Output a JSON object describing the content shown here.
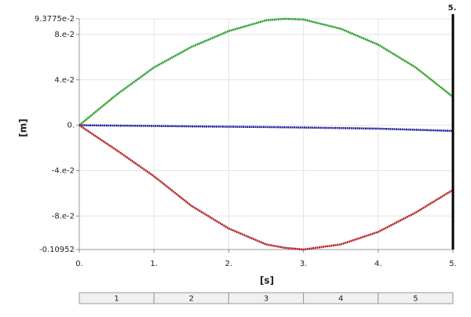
{
  "chart_data": {
    "type": "line",
    "y_label": "[m]",
    "x_label": "[s]",
    "x": [
      0,
      0.5,
      1,
      1.5,
      2,
      2.5,
      2.75,
      3,
      3.5,
      4,
      4.5,
      5
    ],
    "series": [
      {
        "color": "#1f9a1f",
        "values": [
          0,
          0.027,
          0.051,
          0.069,
          0.083,
          0.0925,
          0.093775,
          0.0932,
          0.085,
          0.071,
          0.051,
          0.025
        ]
      },
      {
        "color": "#1c1ca0",
        "values": [
          0,
          -0.0003,
          -0.0006,
          -0.001,
          -0.0013,
          -0.0016,
          -0.0018,
          -0.002,
          -0.0025,
          -0.003,
          -0.004,
          -0.005
        ]
      },
      {
        "color": "#b01818",
        "values": [
          0,
          -0.022,
          -0.045,
          -0.071,
          -0.091,
          -0.105,
          -0.108,
          -0.10952,
          -0.105,
          -0.094,
          -0.077,
          -0.057
        ]
      }
    ],
    "xlim": [
      0,
      5
    ],
    "xticks": [
      {
        "value": 0,
        "label": "0."
      },
      {
        "value": 1,
        "label": "1."
      },
      {
        "value": 2,
        "label": "2."
      },
      {
        "value": 3,
        "label": "3."
      },
      {
        "value": 4,
        "label": "4."
      },
      {
        "value": 5,
        "label": "5."
      }
    ],
    "ylim": [
      -0.10952,
      0.093775
    ],
    "yticks": [
      {
        "value": 0.093775,
        "label": "9.3775e-2"
      },
      {
        "value": 0.08,
        "label": "8.e-2"
      },
      {
        "value": 0.04,
        "label": "4.e-2"
      },
      {
        "value": 0,
        "label": "0."
      },
      {
        "value": -0.04,
        "label": "-4.e-2"
      },
      {
        "value": -0.08,
        "label": "-8.e-2"
      },
      {
        "value": -0.10952,
        "label": "-0.10952"
      }
    ],
    "grid": true,
    "marker": {
      "value": 5,
      "label": "5."
    },
    "timeline": [
      "1",
      "2",
      "3",
      "4",
      "5"
    ]
  }
}
